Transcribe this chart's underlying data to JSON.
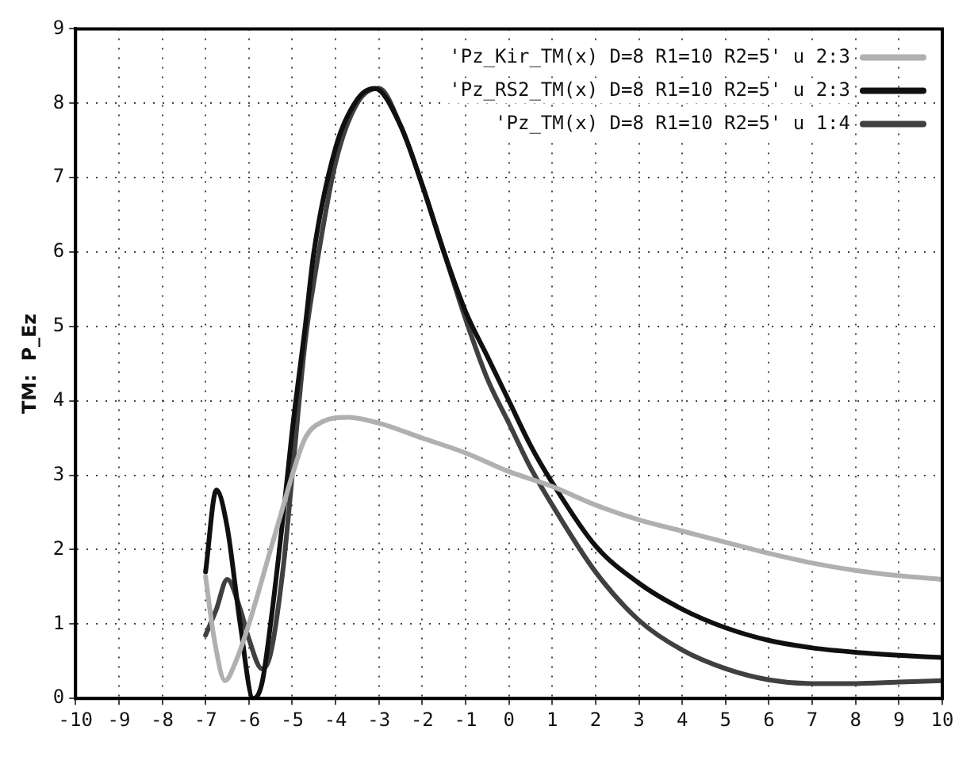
{
  "chart_data": {
    "type": "line",
    "ylabel": "TM:  P_Ez",
    "xlim": [
      -10,
      10
    ],
    "ylim": [
      0,
      9
    ],
    "xticks": [
      -10,
      -9,
      -8,
      -7,
      -6,
      -5,
      -4,
      -3,
      -2,
      -1,
      0,
      1,
      2,
      3,
      4,
      5,
      6,
      7,
      8,
      9,
      10
    ],
    "yticks": [
      0,
      1,
      2,
      3,
      4,
      5,
      6,
      7,
      8,
      9
    ],
    "grid": true,
    "legend": "top right",
    "marker": "none",
    "line_style": "solid",
    "series": [
      {
        "name": "'Pz_Kir_TM(x) D=8 R1=10 R2=5' u 2:3",
        "color": "#b0b0b0",
        "x": [
          -7,
          -6.8,
          -6.55,
          -6.3,
          -6,
          -5.5,
          -5.25,
          -5,
          -4.7,
          -4.3,
          -3.7,
          -3,
          -2,
          -1,
          0,
          1,
          2,
          3,
          4,
          5,
          6,
          7,
          8,
          9,
          10
        ],
        "values": [
          1.64,
          0.8,
          0.24,
          0.5,
          1.0,
          2.0,
          2.5,
          3.0,
          3.5,
          3.72,
          3.78,
          3.7,
          3.5,
          3.3,
          3.05,
          2.85,
          2.6,
          2.4,
          2.25,
          2.1,
          1.95,
          1.82,
          1.72,
          1.65,
          1.6
        ]
      },
      {
        "name": "'Pz_RS2_TM(x) D=8 R1=10 R2=5' u 2:3",
        "color": "#101010",
        "x": [
          -7,
          -6.75,
          -6.5,
          -6.2,
          -5.9,
          -5.7,
          -5.5,
          -5.2,
          -5,
          -4.7,
          -4.5,
          -4,
          -3.5,
          -3.1,
          -2.5,
          -2,
          -1.5,
          -1,
          -0.5,
          0,
          0.5,
          1,
          2,
          3,
          4,
          5,
          6,
          7,
          8,
          9,
          10
        ],
        "values": [
          1.7,
          2.8,
          2.3,
          1.0,
          0,
          0.2,
          1.0,
          2.5,
          3.6,
          5.0,
          6.0,
          7.4,
          8.05,
          8.2,
          7.7,
          6.9,
          6.0,
          5.2,
          4.6,
          4.0,
          3.4,
          2.9,
          2.05,
          1.55,
          1.2,
          0.95,
          0.78,
          0.68,
          0.62,
          0.58,
          0.55
        ]
      },
      {
        "name": "'Pz_TM(x) D=8 R1=10 R2=5' u 1:4",
        "color": "#404040",
        "x": [
          -7,
          -6.75,
          -6.5,
          -6.2,
          -6,
          -5.7,
          -5.5,
          -5.2,
          -5,
          -4.7,
          -4.5,
          -4,
          -3.5,
          -3,
          -2.5,
          -2,
          -1.5,
          -1,
          -0.5,
          0,
          0.5,
          1,
          2,
          3,
          4,
          5,
          6,
          7,
          8,
          9,
          10
        ],
        "values": [
          0.85,
          1.2,
          1.6,
          1.2,
          0.8,
          0.4,
          0.6,
          1.8,
          3.0,
          4.8,
          5.6,
          7.2,
          8.0,
          8.2,
          7.7,
          6.9,
          6.0,
          5.1,
          4.3,
          3.7,
          3.1,
          2.6,
          1.7,
          1.05,
          0.65,
          0.4,
          0.25,
          0.2,
          0.2,
          0.22,
          0.24
        ]
      }
    ]
  }
}
